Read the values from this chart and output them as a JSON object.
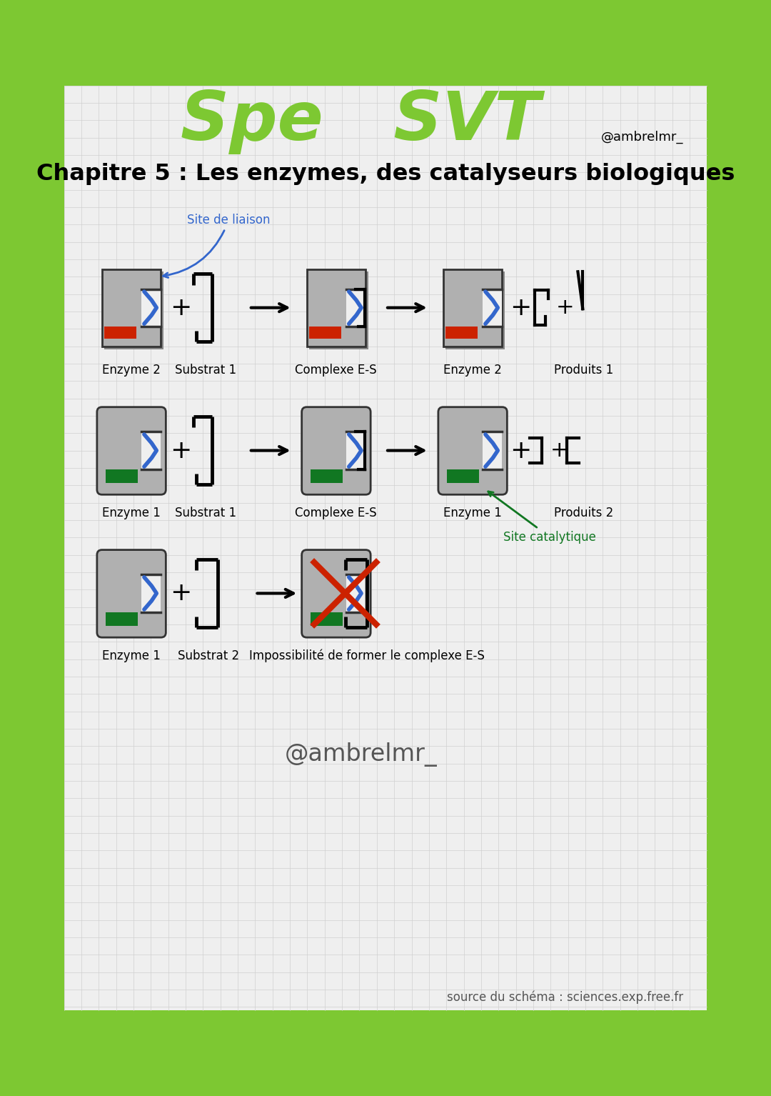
{
  "handle": "@ambrelmr_",
  "chapter": "Chapitre 5 : Les enzymes, des catalyseurs biologiques",
  "bg_color": "#efefef",
  "border_color": "#7dc832",
  "grid_color": "#d0d0d0",
  "title_color": "#7dc832",
  "blue_color": "#3366cc",
  "red_color": "#cc2200",
  "green_color": "#117722",
  "site_liaison_color": "#3366cc",
  "site_catalytique_color": "#117722",
  "source_text": "source du schéma : sciences.exp.free.fr",
  "watermark": "@ambrelmr_",
  "row1_labels": [
    "Enzyme 2",
    "Substrat 1",
    "Complexe E-S",
    "Enzyme 2",
    "Produits 1"
  ],
  "row2_labels": [
    "Enzyme 1",
    "Substrat 1",
    "Complexe E-S",
    "Enzyme 1",
    "Produits 2"
  ],
  "row3_labels": [
    "Enzyme 1",
    "Substrat 2",
    "Impossibilité de former le complexe E-S"
  ],
  "site_liaison": "Site de liaison",
  "site_catalytique": "Site catalytique"
}
